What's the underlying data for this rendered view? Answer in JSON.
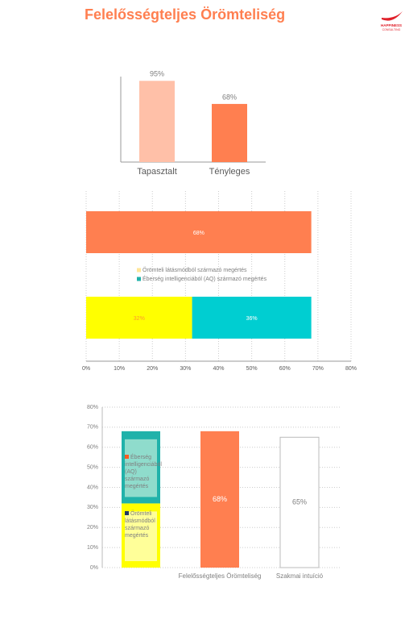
{
  "header": {
    "title": "Felelősségteljes Örömteliség",
    "logo_line1": "HAPPINESS",
    "logo_line2": "CONSULTING"
  },
  "chart_data": [
    {
      "type": "bar",
      "categories": [
        "Tapasztalt",
        "Tényleges"
      ],
      "values": [
        95,
        68
      ],
      "value_labels": [
        "95%",
        "68%"
      ],
      "colors": [
        "#ffc0a8",
        "#ff7f50"
      ],
      "ylim": [
        0,
        100
      ]
    },
    {
      "type": "hbar_stacked",
      "xlim": [
        0,
        80
      ],
      "xticks": [
        {
          "value": 0,
          "label": "0%"
        },
        {
          "value": 10,
          "label": "10%"
        },
        {
          "value": 20,
          "label": "20%"
        },
        {
          "value": 30,
          "label": "30%"
        },
        {
          "value": 40,
          "label": "40%"
        },
        {
          "value": 50,
          "label": "50%"
        },
        {
          "value": 60,
          "label": "60%"
        },
        {
          "value": 70,
          "label": "70%"
        },
        {
          "value": 80,
          "label": "80%"
        }
      ],
      "grid": true,
      "bars": [
        {
          "segments": [
            {
              "value": 68,
              "value_label": "68%",
              "color": "#ff7f50",
              "label_color": "#ffffff"
            }
          ]
        },
        {
          "segments": [
            {
              "value": 32,
              "value_label": "32%",
              "color": "#ffff00",
              "label_color": "#ff9a2e"
            },
            {
              "value": 36,
              "value_label": "36%",
              "color": "#00ced1",
              "label_color": "#ffffff"
            }
          ]
        }
      ],
      "legend": [
        {
          "name": "Örömteli látásmódból származó megértés",
          "color": "#ffe699"
        },
        {
          "name": "Éberség intelligenciából (AQ) származó megértés",
          "color": "#20b2aa"
        }
      ]
    },
    {
      "type": "bar_stacked",
      "ylim": [
        0,
        80
      ],
      "yticks": [
        {
          "value": 0,
          "label": "0%"
        },
        {
          "value": 10,
          "label": "10%"
        },
        {
          "value": 20,
          "label": "20%"
        },
        {
          "value": 30,
          "label": "30%"
        },
        {
          "value": 40,
          "label": "40%"
        },
        {
          "value": 50,
          "label": "50%"
        },
        {
          "value": 60,
          "label": "60%"
        },
        {
          "value": 70,
          "label": "70%"
        },
        {
          "value": 80,
          "label": "80%"
        }
      ],
      "grid": true,
      "bars": [
        {
          "category": null,
          "segments": [
            {
              "value": 32,
              "color": "#ffff00",
              "inner_color": "#ffff99"
            },
            {
              "value": 36,
              "color": "#20b2aa",
              "inner_color": "#8fdccc"
            }
          ]
        },
        {
          "category": "Felelősségteljes  Örömteliség",
          "segments": [
            {
              "value": 68,
              "value_label": "68%",
              "color": "#ff7f50",
              "label_color": "#ffffff"
            }
          ]
        },
        {
          "category": "Szakmai intuíció",
          "segments": [
            {
              "value": 65,
              "value_label": "65%",
              "color": "#ffffff",
              "label_color": "#7f7f7f"
            }
          ]
        }
      ],
      "legend": [
        {
          "name": "Éberség intelligenciából (AQ) származó megértés",
          "color": "#ff5a1f"
        },
        {
          "name": "Örömteli látásmódból származó megértés",
          "color": "#1f3864"
        }
      ]
    }
  ]
}
